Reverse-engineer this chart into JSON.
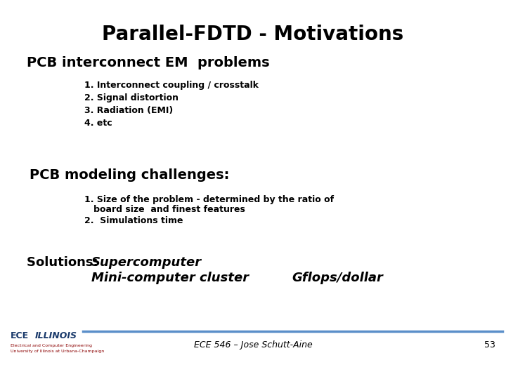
{
  "title": "Parallel-FDTD - Motivations",
  "title_fontsize": 20,
  "bg_color": "#ffffff",
  "text_color": "#000000",
  "section1_heading": "PCB interconnect EM  problems",
  "section1_heading_fontsize": 14,
  "section1_items": [
    "1. Interconnect coupling / crosstalk",
    "2. Signal distortion",
    "3. Radiation (EMI)",
    "4. etc"
  ],
  "section1_items_fontsize": 9,
  "section2_heading": "PCB modeling challenges:",
  "section2_heading_fontsize": 14,
  "section2_item1_line1": "1. Size of the problem - determined by the ratio of",
  "section2_item1_line2": "   board size  and finest features",
  "section2_item2": "2.  Simulations time",
  "section2_items_fontsize": 9,
  "solutions_label": "Solutions: ",
  "solutions_item1": "Supercomputer",
  "solutions_item2": "Mini-computer cluster",
  "solutions_gflops": "Gflops/dollar",
  "solutions_fontsize": 13,
  "footer_line_color": "#5b8fc9",
  "footer_line_lw": 2.5,
  "footer_center_text": "ECE 546 – Jose Schutt-Aine",
  "footer_right_text": "53",
  "footer_fontsize": 9,
  "ece_text": "ECE",
  "illinois_text": "ILLINOIS",
  "logo_color": "#1a3a6b",
  "sub_text1": "Electrical and Computer Engineering",
  "sub_text2": "University of Illinois at Urbana-Champaign",
  "sub_color": "#8B0000"
}
